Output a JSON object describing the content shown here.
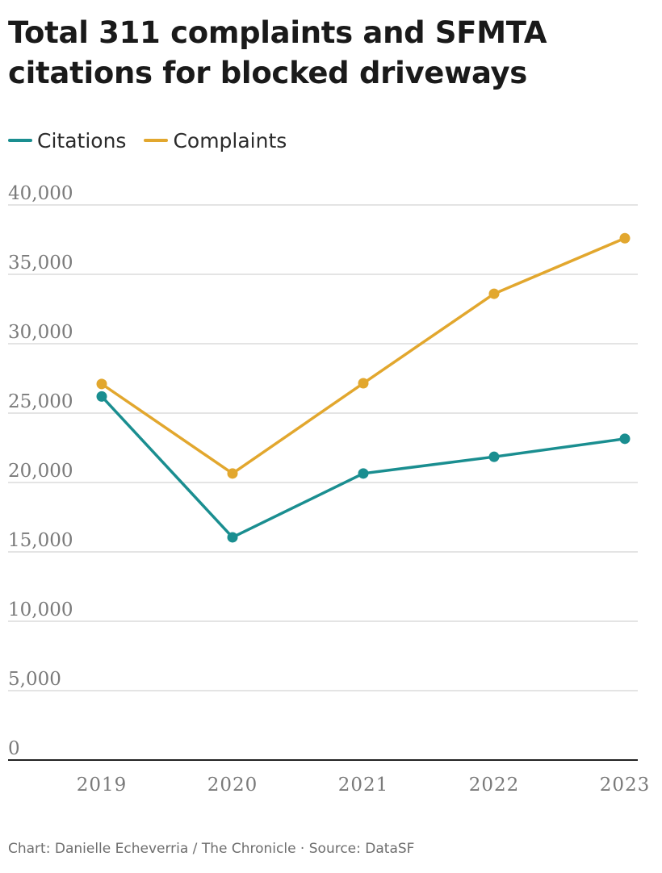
{
  "title": "Total 311 complaints and SFMTA citations for blocked driveways",
  "legend": {
    "items": [
      {
        "label": "Citations",
        "color": "#1a8e90"
      },
      {
        "label": "Complaints",
        "color": "#e2a72e"
      }
    ]
  },
  "footer": {
    "credit": "Chart: Danielle Echeverria / The Chronicle",
    "separator": " · ",
    "source": "Source: DataSF"
  },
  "chart_data": {
    "type": "line",
    "x": [
      "2019",
      "2020",
      "2021",
      "2022",
      "2023"
    ],
    "series": [
      {
        "name": "Citations",
        "color": "#1a8e90",
        "values": [
          26200,
          16050,
          20650,
          21850,
          23150
        ]
      },
      {
        "name": "Complaints",
        "color": "#e2a72e",
        "values": [
          27100,
          20650,
          27150,
          33600,
          37600
        ]
      }
    ],
    "y_ticks": [
      0,
      5000,
      10000,
      15000,
      20000,
      25000,
      30000,
      35000,
      40000
    ],
    "y_tick_labels": [
      "0",
      "5,000",
      "10,000",
      "15,000",
      "20,000",
      "25,000",
      "30,000",
      "35,000",
      "40,000"
    ],
    "ylim": [
      0,
      40000
    ],
    "grid": true,
    "legend_position": "top-left",
    "gridline_color": "#dcdcdc",
    "axis_color": "#222222",
    "tick_label_color": "#7a7a7a"
  }
}
